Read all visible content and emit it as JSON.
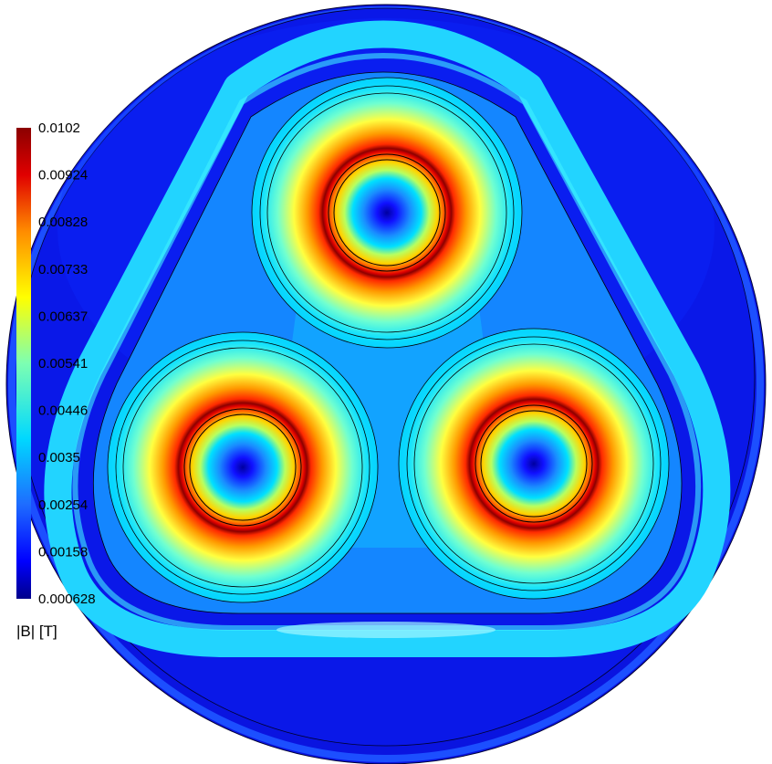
{
  "figure": {
    "quantity_label": "|B| [T]",
    "colormap": "rainbow",
    "colormap_stops": [
      "#00008b",
      "#0000ff",
      "#1e6cff",
      "#00d8ff",
      "#7dffb2",
      "#ffff00",
      "#ff8c00",
      "#e00000",
      "#8b0000"
    ]
  },
  "colorbar": {
    "max": 0.0102,
    "min": 0.000628,
    "ticks": [
      "0.0102",
      "0.00924",
      "0.00828",
      "0.00733",
      "0.00637",
      "0.00541",
      "0.00446",
      "0.0035",
      "0.00254",
      "0.00158",
      "0.000628"
    ]
  },
  "conductors": [
    {
      "name": "top"
    },
    {
      "name": "bottom-left"
    },
    {
      "name": "bottom-right"
    }
  ]
}
